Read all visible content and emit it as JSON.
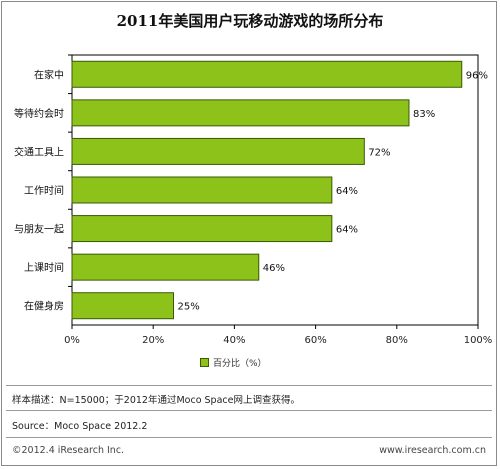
{
  "title": "2011年美国用户玩移动游戏的场所分布",
  "legend": {
    "label": "百分比（%）"
  },
  "colors": {
    "bar": "#8cc21a",
    "bar_edge": "#3a5a06",
    "plot_bg": "#ffffff"
  },
  "chart_data": {
    "type": "bar",
    "orientation": "horizontal",
    "title": "2011年美国用户玩移动游戏的场所分布",
    "categories": [
      "在家中",
      "等待约会时",
      "交通工具上",
      "工作时间",
      "与朋友一起",
      "上课时间",
      "在健身房"
    ],
    "series": [
      {
        "name": "百分比（%）",
        "values": [
          96,
          83,
          72,
          64,
          64,
          46,
          25
        ]
      }
    ],
    "data_labels": [
      "96%",
      "83%",
      "72%",
      "64%",
      "64%",
      "46%",
      "25%"
    ],
    "xlim": [
      0,
      100
    ],
    "x_ticks": [
      "0%",
      "20%",
      "40%",
      "60%",
      "80%",
      "100%"
    ],
    "legend_position": "bottom",
    "grid": false
  },
  "notes": {
    "sample": "样本描述：N=15000；于2012年通过Moco Space网上调查获得。",
    "source": "Source：Moco Space 2012.2"
  },
  "footer": {
    "copyright": "©2012.4 iResearch Inc.",
    "website": "www.iresearch.com.cn"
  }
}
